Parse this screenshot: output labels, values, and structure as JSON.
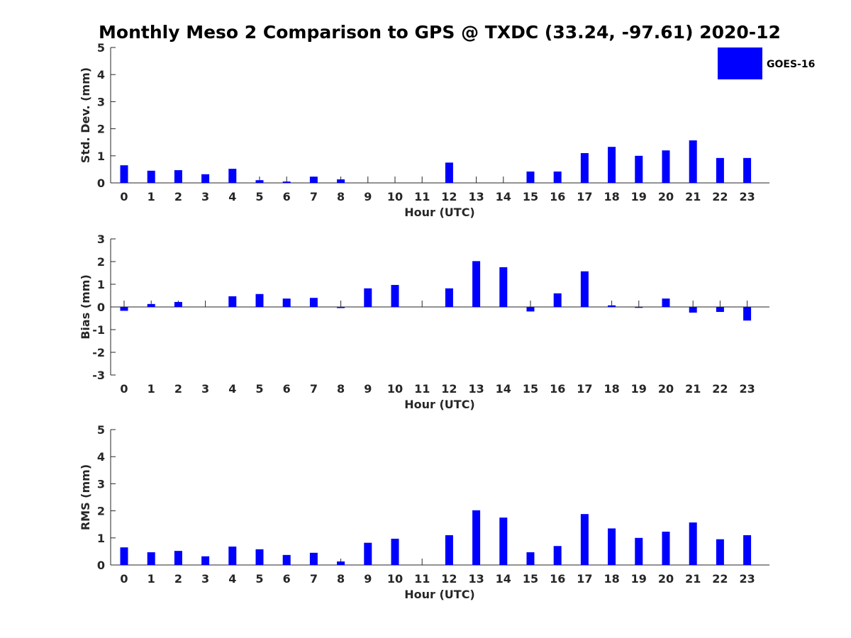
{
  "figure": {
    "title": "Monthly Meso 2 Comparison to GPS @ TXDC (33.24, -97.61) 2020-12",
    "legend": {
      "label": "GOES-16",
      "color": "#0000ff",
      "placement": "top-right"
    }
  },
  "chart_data": [
    {
      "type": "bar",
      "ylabel": "Std. Dev. (mm)",
      "xlabel": "Hour (UTC)",
      "ylim": [
        0,
        5
      ],
      "yticks": [
        0,
        1,
        2,
        3,
        4,
        5
      ],
      "categories": [
        "0",
        "1",
        "2",
        "3",
        "4",
        "5",
        "6",
        "7",
        "8",
        "9",
        "10",
        "11",
        "12",
        "13",
        "14",
        "15",
        "16",
        "17",
        "18",
        "19",
        "20",
        "21",
        "22",
        "23"
      ],
      "series": [
        {
          "name": "GOES-16",
          "color": "#0000ff",
          "values": [
            0.65,
            0.45,
            0.47,
            0.32,
            0.52,
            0.1,
            0.05,
            0.23,
            0.13,
            0,
            0,
            0,
            0.75,
            0,
            0,
            0.42,
            0.42,
            1.1,
            1.33,
            1.0,
            1.2,
            1.57,
            0.92,
            0.92
          ]
        }
      ]
    },
    {
      "type": "bar",
      "ylabel": "Bias (mm)",
      "xlabel": "Hour (UTC)",
      "ylim": [
        -3,
        3
      ],
      "yticks": [
        -3,
        -2,
        -1,
        0,
        1,
        2,
        3
      ],
      "categories": [
        "0",
        "1",
        "2",
        "3",
        "4",
        "5",
        "6",
        "7",
        "8",
        "9",
        "10",
        "11",
        "12",
        "13",
        "14",
        "15",
        "16",
        "17",
        "18",
        "19",
        "20",
        "21",
        "22",
        "23"
      ],
      "series": [
        {
          "name": "GOES-16",
          "color": "#0000ff",
          "values": [
            -0.17,
            0.13,
            0.22,
            0,
            0.47,
            0.57,
            0.37,
            0.4,
            -0.05,
            0.82,
            0.97,
            0,
            0.82,
            2.02,
            1.75,
            -0.2,
            0.6,
            1.57,
            0.07,
            -0.04,
            0.37,
            -0.25,
            -0.22,
            -0.6
          ]
        }
      ]
    },
    {
      "type": "bar",
      "ylabel": "RMS (mm)",
      "xlabel": "Hour (UTC)",
      "ylim": [
        0,
        5
      ],
      "yticks": [
        0,
        1,
        2,
        3,
        4,
        5
      ],
      "categories": [
        "0",
        "1",
        "2",
        "3",
        "4",
        "5",
        "6",
        "7",
        "8",
        "9",
        "10",
        "11",
        "12",
        "13",
        "14",
        "15",
        "16",
        "17",
        "18",
        "19",
        "20",
        "21",
        "22",
        "23"
      ],
      "series": [
        {
          "name": "GOES-16",
          "color": "#0000ff",
          "values": [
            0.65,
            0.47,
            0.52,
            0.32,
            0.68,
            0.58,
            0.37,
            0.45,
            0.13,
            0.82,
            0.97,
            0,
            1.1,
            2.02,
            1.75,
            0.47,
            0.7,
            1.88,
            1.35,
            1.0,
            1.23,
            1.57,
            0.95,
            1.1
          ]
        }
      ]
    }
  ]
}
